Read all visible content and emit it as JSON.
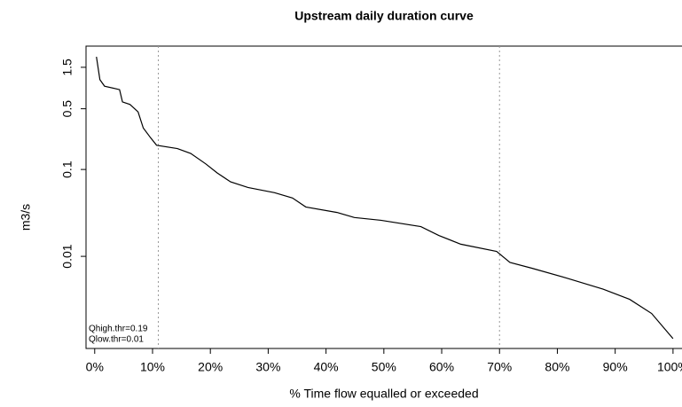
{
  "chart_data": {
    "type": "line",
    "title": "Upstream daily duration curve",
    "x_label": "% Time flow equalled or exceeded",
    "y_label": "m3/s",
    "log_y": true,
    "x": [
      0.3,
      0.9,
      1.7,
      4.3,
      4.8,
      6.1,
      7.5,
      8.4,
      9.7,
      10.7,
      14.3,
      16.6,
      19.2,
      21.2,
      23.5,
      26.5,
      31.1,
      34.2,
      36.5,
      41.9,
      44.9,
      49.5,
      56.4,
      59.5,
      63.3,
      69.5,
      71.8,
      75.6,
      81.7,
      87.9,
      92.5,
      96.3,
      100
    ],
    "series": [
      {
        "name": "flow",
        "color": "#000000",
        "values": [
          1.98,
          1.08,
          0.91,
          0.83,
          0.6,
          0.56,
          0.46,
          0.3,
          0.23,
          0.19,
          0.174,
          0.153,
          0.116,
          0.091,
          0.072,
          0.062,
          0.054,
          0.047,
          0.037,
          0.032,
          0.028,
          0.026,
          0.022,
          0.0174,
          0.0138,
          0.0114,
          0.0085,
          0.0073,
          0.0056,
          0.0042,
          0.0032,
          0.0022,
          0.00113
        ]
      }
    ],
    "xlim": [
      -1.5,
      101.4
    ],
    "ylim": [
      0.00087,
      2.63
    ],
    "xticks": [
      {
        "value": 0,
        "label": "0%"
      },
      {
        "value": 10,
        "label": "10%"
      },
      {
        "value": 20,
        "label": "20%"
      },
      {
        "value": 30,
        "label": "30%"
      },
      {
        "value": 40,
        "label": "40%"
      },
      {
        "value": 50,
        "label": "50%"
      },
      {
        "value": 60,
        "label": "60%"
      },
      {
        "value": 70,
        "label": "70%"
      },
      {
        "value": 80,
        "label": "80%"
      },
      {
        "value": 90,
        "label": "90%"
      },
      {
        "value": 100,
        "label": "100%"
      }
    ],
    "yticks": [
      0.01,
      0.1,
      0.5,
      1.5
    ],
    "vlines": [
      11,
      70
    ],
    "annotations": [
      "Qhigh.thr=0.19",
      "Qlow.thr=0.01"
    ]
  }
}
